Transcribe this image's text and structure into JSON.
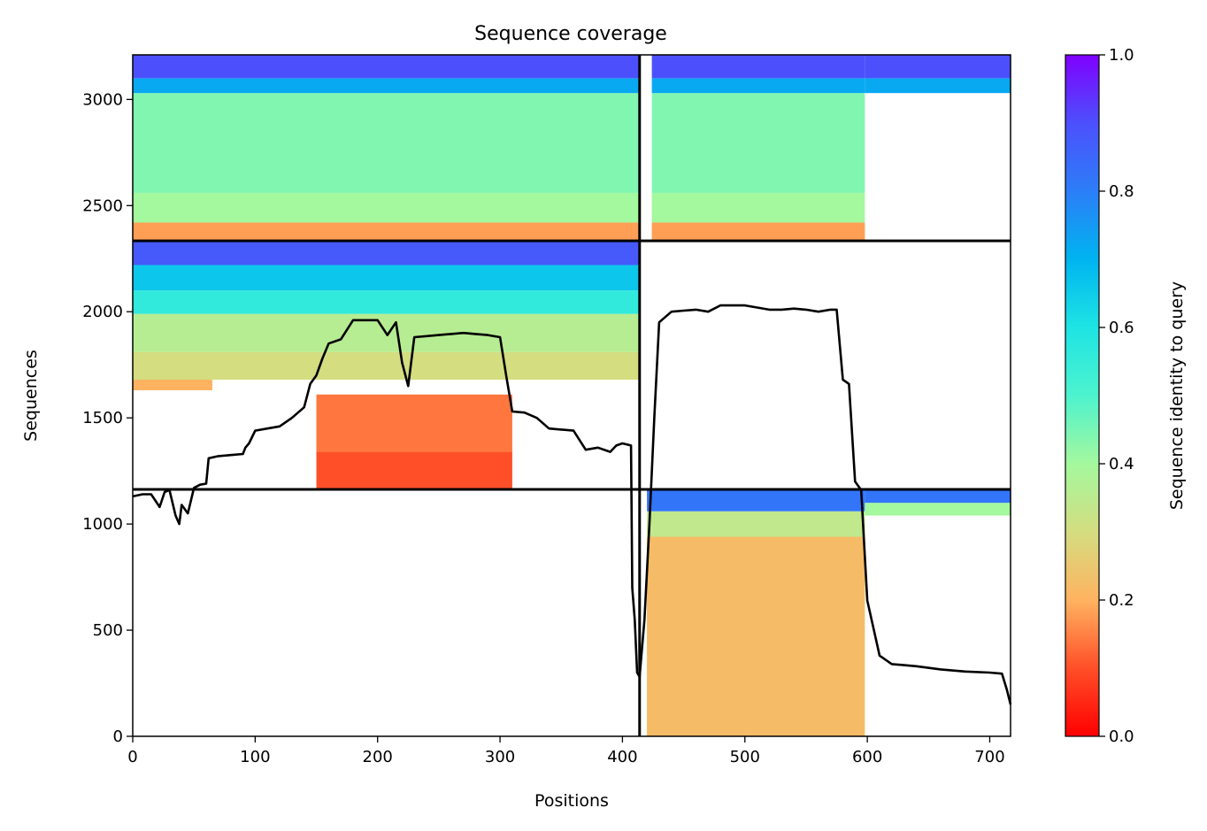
{
  "chart_data": {
    "type": "heatmap",
    "title": "Sequence coverage",
    "xlabel": "Positions",
    "ylabel": "Sequences",
    "xlim": [
      0,
      717
    ],
    "ylim": [
      0,
      3210
    ],
    "xticks": [
      0,
      100,
      200,
      300,
      400,
      500,
      600,
      700
    ],
    "yticks": [
      0,
      500,
      1000,
      1500,
      2000,
      2500,
      3000
    ],
    "grid": false,
    "colormap": "rainbow_r",
    "colorbar": {
      "label": "Sequence identity to query",
      "range": [
        0,
        1
      ],
      "ticks": [
        "0.0",
        "0.2",
        "0.4",
        "0.6",
        "0.8",
        "1.0"
      ],
      "stops": [
        {
          "v": 0.0,
          "color": "#ff0000"
        },
        {
          "v": 0.1,
          "color": "#ff4f28"
        },
        {
          "v": 0.2,
          "color": "#ffb360"
        },
        {
          "v": 0.3,
          "color": "#d4dd80"
        },
        {
          "v": 0.4,
          "color": "#a4f89e"
        },
        {
          "v": 0.5,
          "color": "#4df3ce"
        },
        {
          "v": 0.6,
          "color": "#1ee4e4"
        },
        {
          "v": 0.7,
          "color": "#00b4f0"
        },
        {
          "v": 0.8,
          "color": "#2c7ef8"
        },
        {
          "v": 0.9,
          "color": "#4c50fc"
        },
        {
          "v": 1.0,
          "color": "#8000ff"
        }
      ]
    },
    "chain_boundaries": {
      "x": 414,
      "y": [
        1163,
        2334
      ]
    },
    "coverage_blocks": [
      {
        "x": [
          0,
          414
        ],
        "y": [
          2334,
          3210
        ],
        "bands": [
          [
            2334,
            2420,
            0.18
          ],
          [
            2420,
            2560,
            0.4
          ],
          [
            2560,
            3030,
            0.44
          ],
          [
            3030,
            3100,
            0.72
          ],
          [
            3100,
            3210,
            0.9
          ]
        ]
      },
      {
        "x": [
          424,
          598
        ],
        "y": [
          2334,
          3210
        ],
        "bands": [
          [
            2334,
            2420,
            0.18
          ],
          [
            2420,
            2560,
            0.4
          ],
          [
            2560,
            3030,
            0.44
          ],
          [
            3030,
            3100,
            0.72
          ],
          [
            3100,
            3210,
            0.9
          ]
        ]
      },
      {
        "x": [
          598,
          717
        ],
        "y": [
          3030,
          3210
        ],
        "bands": [
          [
            3030,
            3100,
            0.72
          ],
          [
            3100,
            3210,
            0.9
          ]
        ]
      },
      {
        "x": [
          0,
          414
        ],
        "y": [
          1680,
          2334
        ],
        "bands": [
          [
            1680,
            1810,
            0.3
          ],
          [
            1810,
            1990,
            0.36
          ],
          [
            1990,
            2100,
            0.56
          ],
          [
            2100,
            2220,
            0.66
          ],
          [
            2220,
            2334,
            0.88
          ]
        ]
      },
      {
        "x": [
          0,
          65
        ],
        "y": [
          1630,
          1680
        ],
        "bands": [
          [
            1630,
            1680,
            0.2
          ]
        ]
      },
      {
        "x": [
          150,
          310
        ],
        "y": [
          1163,
          1610
        ],
        "bands": [
          [
            1163,
            1340,
            0.1
          ],
          [
            1340,
            1610,
            0.14
          ]
        ]
      },
      {
        "x": [
          420,
          598
        ],
        "y": [
          0,
          1163
        ],
        "bands": [
          [
            0,
            940,
            0.22
          ],
          [
            940,
            1060,
            0.34
          ],
          [
            1060,
            1163,
            0.82
          ]
        ]
      },
      {
        "x": [
          598,
          717
        ],
        "y": [
          1040,
          1163
        ],
        "bands": [
          [
            1040,
            1100,
            0.4
          ],
          [
            1100,
            1163,
            0.82
          ]
        ]
      }
    ],
    "series": [
      {
        "color": "#000000",
        "x": [
          0,
          8,
          15,
          22,
          26,
          30,
          35,
          38,
          40,
          45,
          50,
          55,
          60,
          62,
          70,
          80,
          90,
          92,
          95,
          100,
          110,
          120,
          130,
          140,
          145,
          150,
          155,
          160,
          170,
          180,
          190,
          200,
          208,
          215,
          220,
          225,
          230,
          240,
          250,
          260,
          270,
          280,
          290,
          300,
          305,
          310,
          320,
          330,
          340,
          350,
          360,
          370,
          380,
          390,
          395,
          400,
          407,
          408,
          410,
          412,
          414,
          418,
          422,
          426,
          430,
          440,
          450,
          460,
          470,
          480,
          490,
          500,
          510,
          520,
          530,
          540,
          550,
          560,
          570,
          575,
          580,
          585,
          590,
          595,
          600,
          610,
          620,
          640,
          660,
          680,
          700,
          710,
          714,
          717
        ],
        "y": [
          1130,
          1140,
          1140,
          1080,
          1150,
          1160,
          1040,
          1000,
          1090,
          1050,
          1170,
          1185,
          1190,
          1310,
          1320,
          1325,
          1330,
          1360,
          1380,
          1440,
          1450,
          1460,
          1500,
          1550,
          1660,
          1700,
          1780,
          1850,
          1870,
          1960,
          1960,
          1960,
          1890,
          1950,
          1760,
          1650,
          1880,
          1885,
          1890,
          1895,
          1900,
          1895,
          1890,
          1880,
          1700,
          1530,
          1525,
          1500,
          1450,
          1445,
          1440,
          1350,
          1360,
          1340,
          1370,
          1380,
          1370,
          700,
          550,
          300,
          280,
          550,
          1000,
          1500,
          1950,
          2000,
          2005,
          2010,
          2000,
          2030,
          2030,
          2030,
          2020,
          2010,
          2010,
          2015,
          2010,
          2000,
          2010,
          2010,
          1680,
          1660,
          1200,
          1160,
          640,
          380,
          340,
          330,
          315,
          305,
          300,
          295,
          220,
          150
        ]
      }
    ]
  }
}
